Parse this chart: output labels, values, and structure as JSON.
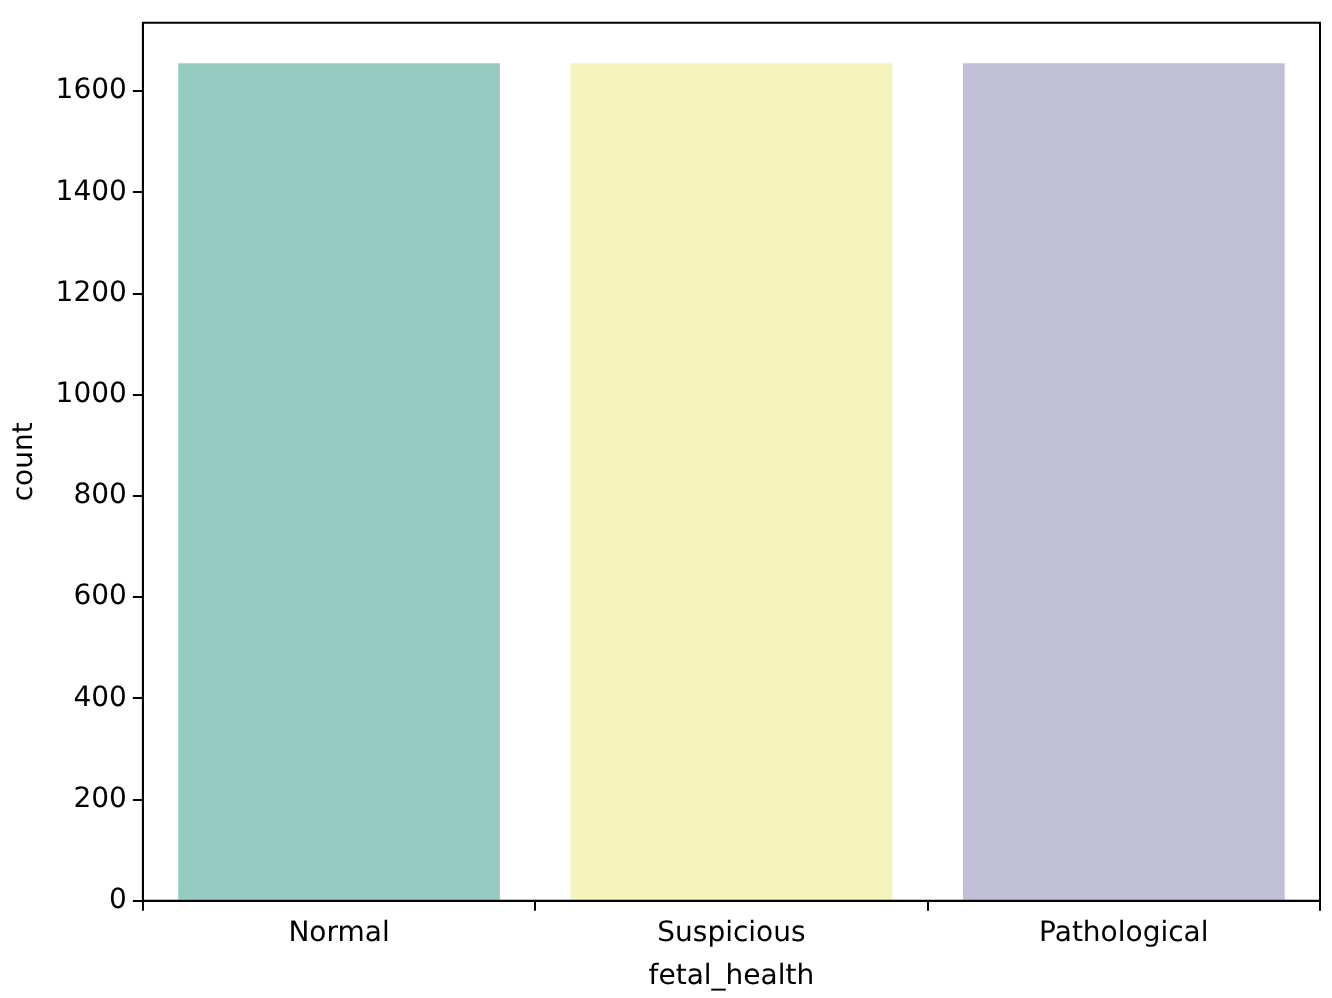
{
  "chart_data": {
    "type": "bar",
    "xlabel": "fetal_health",
    "ylabel": "count",
    "categories": [
      "Normal",
      "Suspicious",
      "Pathological"
    ],
    "values": [
      1655,
      1655,
      1655
    ],
    "colors": [
      "#96cbc1",
      "#f5f5bb",
      "#c1bed7"
    ],
    "ylim": [
      0,
      1735
    ],
    "yticks": [
      0,
      200,
      400,
      600,
      800,
      1000,
      1200,
      1400,
      1600
    ],
    "grid": false
  }
}
